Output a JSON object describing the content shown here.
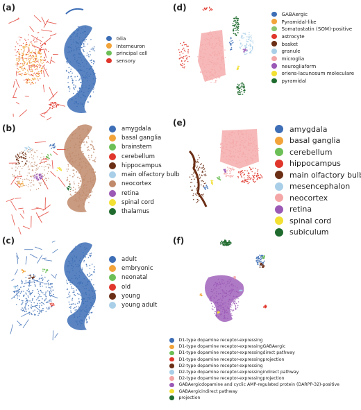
{
  "chart_data": [
    {
      "panel": "(a)",
      "type": "scatter",
      "legend_position": "right",
      "series": [
        {
          "name": "Glia",
          "color": "#3d6eb6"
        },
        {
          "name": "Interneuron",
          "color": "#f2a43a"
        },
        {
          "name": "principal cell",
          "color": "#6cbf56"
        },
        {
          "name": "sensory",
          "color": "#e0362b"
        }
      ]
    },
    {
      "panel": "(b)",
      "type": "scatter",
      "legend_position": "right",
      "series": [
        {
          "name": "amygdala",
          "color": "#3d6eb6"
        },
        {
          "name": "basal ganglia",
          "color": "#f2a43a"
        },
        {
          "name": "brainstem",
          "color": "#6cbf56"
        },
        {
          "name": "cerebellum",
          "color": "#e0362b"
        },
        {
          "name": "hippocampus",
          "color": "#6b2f16"
        },
        {
          "name": "main olfactory bulb",
          "color": "#a9cfe8"
        },
        {
          "name": "neocortex",
          "color": "#c08a6b"
        },
        {
          "name": "retina",
          "color": "#9b59b6"
        },
        {
          "name": "spinal cord",
          "color": "#f2e033"
        },
        {
          "name": "thalamus",
          "color": "#1f6b2e"
        }
      ]
    },
    {
      "panel": "(c)",
      "type": "scatter",
      "legend_position": "right",
      "series": [
        {
          "name": "adult",
          "color": "#3d6eb6"
        },
        {
          "name": "embryonic",
          "color": "#f2a43a"
        },
        {
          "name": "neonatal",
          "color": "#6cbf56"
        },
        {
          "name": "old",
          "color": "#e0362b"
        },
        {
          "name": "young",
          "color": "#6b2f16"
        },
        {
          "name": "young adult",
          "color": "#a9cfe8"
        }
      ]
    },
    {
      "panel": "(d)",
      "type": "scatter",
      "legend_position": "right",
      "series": [
        {
          "name": "GABAergic",
          "color": "#3d6eb6"
        },
        {
          "name": "Pyramidal-like",
          "color": "#f2a43a"
        },
        {
          "name": "Somatostatin (SOM)-positive",
          "color": "#8ac46f"
        },
        {
          "name": "astrocyte",
          "color": "#e0362b"
        },
        {
          "name": "basket",
          "color": "#6b2f16"
        },
        {
          "name": "granule",
          "color": "#a9cfe8"
        },
        {
          "name": "microglia",
          "color": "#f4a6a6"
        },
        {
          "name": "neurogliaform",
          "color": "#9b59b6"
        },
        {
          "name": "oriens-lacunosum moleculare",
          "color": "#f2e033"
        },
        {
          "name": "pyramidal",
          "color": "#1f6b2e"
        }
      ]
    },
    {
      "panel": "(e)",
      "type": "scatter",
      "legend_position": "right",
      "series": [
        {
          "name": "amygdala",
          "color": "#3d6eb6"
        },
        {
          "name": "basal ganglia",
          "color": "#f2a43a"
        },
        {
          "name": "cerebellum",
          "color": "#6cbf56"
        },
        {
          "name": "hippocampus",
          "color": "#e0362b"
        },
        {
          "name": "main olfactory bulb",
          "color": "#6b2f16"
        },
        {
          "name": "mesencephalon",
          "color": "#a9cfe8"
        },
        {
          "name": "neocortex",
          "color": "#f4a6a6"
        },
        {
          "name": "retina",
          "color": "#9b59b6"
        },
        {
          "name": "spinal cord",
          "color": "#f2e033"
        },
        {
          "name": "subiculum",
          "color": "#1f6b2e"
        }
      ]
    },
    {
      "panel": "(f)",
      "type": "scatter",
      "legend_position": "bottom",
      "series": [
        {
          "name": "D1-type dopamine receptor-expressing",
          "color": "#3d6eb6"
        },
        {
          "name": "D1-type dopamine receptor-expressingGABAergic",
          "color": "#f2a43a"
        },
        {
          "name": "D1-type dopamine receptor-expressingdirect pathway",
          "color": "#6cbf56"
        },
        {
          "name": "D1-type dopamine receptor-expressingprojection",
          "color": "#e0362b"
        },
        {
          "name": "D2-type dopamine receptor-expressing",
          "color": "#6b2f16"
        },
        {
          "name": "D2-type dopamine receptor-expressingindirect pathway",
          "color": "#a9cfe8"
        },
        {
          "name": "D2-type dopamine receptor-expressingprojection",
          "color": "#f4a6a6"
        },
        {
          "name": "GABAergicdopamine and cyclic AMP-regulated protein (DARPP-32)-positive",
          "color": "#9b59b6"
        },
        {
          "name": "GABAergicindirect pathway",
          "color": "#f2e033"
        },
        {
          "name": "projection",
          "color": "#1f6b2e"
        }
      ]
    }
  ]
}
